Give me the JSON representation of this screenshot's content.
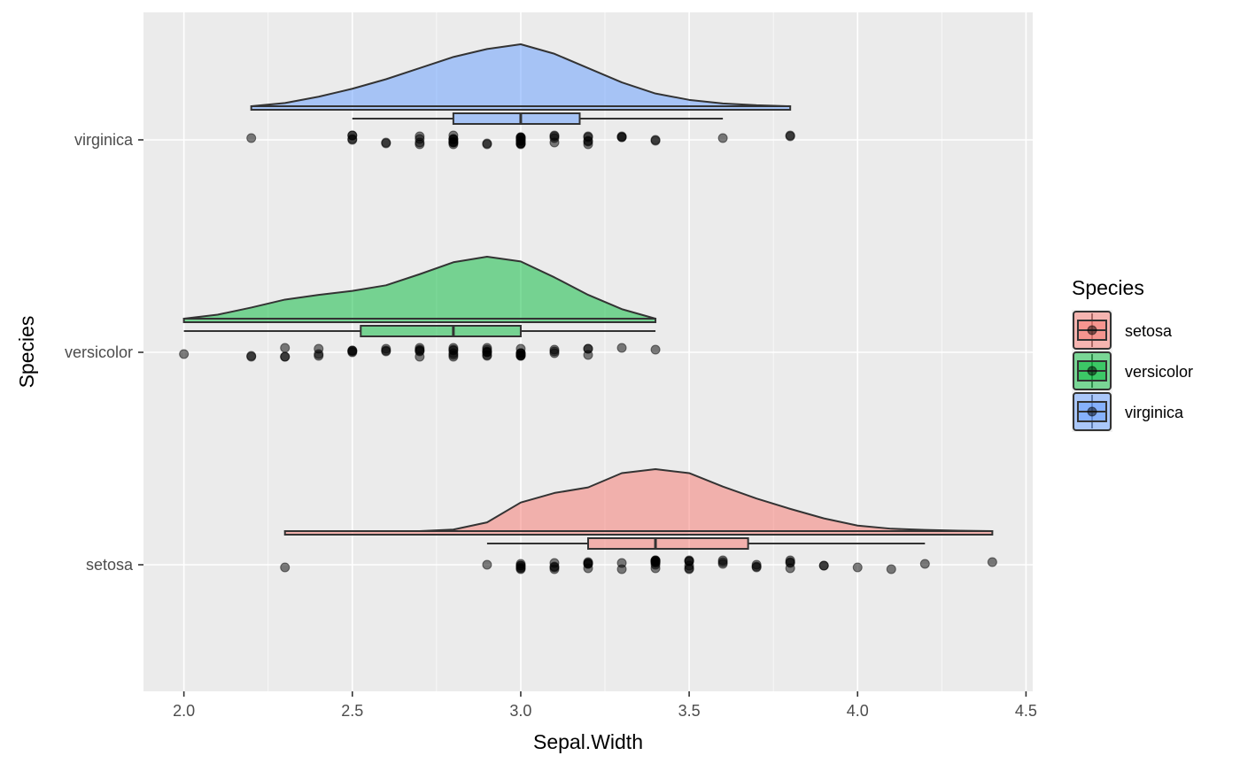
{
  "chart_data": {
    "type": "raincloud",
    "xlabel": "Sepal.Width",
    "ylabel": "Species",
    "xlim": [
      1.88,
      4.52
    ],
    "x_ticks": [
      2.0,
      2.5,
      3.0,
      3.5,
      4.0,
      4.5
    ],
    "x_tick_labels": [
      "2.0",
      "2.5",
      "3.0",
      "3.5",
      "4.0",
      "4.5"
    ],
    "categories": [
      "setosa",
      "versicolor",
      "virginica"
    ],
    "grid": true,
    "legend": {
      "title": "Species",
      "position": "right",
      "items": [
        {
          "label": "setosa",
          "color": "#F8766D"
        },
        {
          "label": "versicolor",
          "color": "#00BA38"
        },
        {
          "label": "virginica",
          "color": "#619CFF"
        }
      ]
    },
    "series": [
      {
        "name": "setosa",
        "color": "#F8766D",
        "range": [
          2.3,
          4.4
        ],
        "box": {
          "whisker_low": 2.9,
          "q1": 3.2,
          "median": 3.4,
          "q3": 3.675,
          "whisker_high": 4.2
        },
        "density": [
          [
            2.3,
            0.0
          ],
          [
            2.5,
            0.0
          ],
          [
            2.7,
            0.0
          ],
          [
            2.8,
            0.02
          ],
          [
            2.9,
            0.11
          ],
          [
            3.0,
            0.36
          ],
          [
            3.1,
            0.48
          ],
          [
            3.2,
            0.55
          ],
          [
            3.3,
            0.73
          ],
          [
            3.4,
            0.78
          ],
          [
            3.5,
            0.73
          ],
          [
            3.6,
            0.56
          ],
          [
            3.7,
            0.41
          ],
          [
            3.8,
            0.28
          ],
          [
            3.9,
            0.16
          ],
          [
            4.0,
            0.07
          ],
          [
            4.1,
            0.03
          ],
          [
            4.2,
            0.015
          ],
          [
            4.3,
            0.005
          ],
          [
            4.4,
            0.0
          ]
        ],
        "points": [
          3.5,
          3.0,
          3.2,
          3.1,
          3.6,
          3.9,
          3.4,
          3.4,
          2.9,
          3.1,
          3.7,
          3.4,
          3.0,
          3.0,
          4.0,
          4.4,
          3.9,
          3.5,
          3.8,
          3.8,
          3.4,
          3.7,
          3.6,
          3.3,
          3.4,
          3.0,
          3.4,
          3.5,
          3.4,
          3.2,
          3.1,
          3.4,
          4.1,
          4.2,
          3.1,
          3.2,
          3.5,
          3.6,
          3.0,
          3.4,
          3.5,
          2.3,
          3.2,
          3.5,
          3.8,
          3.0,
          3.8,
          3.2,
          3.7,
          3.3
        ]
      },
      {
        "name": "versicolor",
        "color": "#00BA38",
        "range": [
          2.0,
          3.4
        ],
        "box": {
          "whisker_low": 2.0,
          "q1": 2.525,
          "median": 2.8,
          "q3": 3.0,
          "whisker_high": 3.4
        },
        "density": [
          [
            2.0,
            0.0
          ],
          [
            2.1,
            0.05
          ],
          [
            2.2,
            0.14
          ],
          [
            2.3,
            0.24
          ],
          [
            2.4,
            0.3
          ],
          [
            2.5,
            0.35
          ],
          [
            2.6,
            0.42
          ],
          [
            2.7,
            0.56
          ],
          [
            2.8,
            0.71
          ],
          [
            2.9,
            0.78
          ],
          [
            3.0,
            0.72
          ],
          [
            3.1,
            0.52
          ],
          [
            3.2,
            0.3
          ],
          [
            3.3,
            0.12
          ],
          [
            3.4,
            0.0
          ]
        ],
        "points": [
          3.2,
          3.2,
          3.1,
          2.3,
          2.8,
          2.8,
          3.3,
          2.4,
          2.9,
          2.7,
          2.0,
          3.0,
          2.2,
          2.9,
          2.9,
          3.1,
          3.0,
          2.7,
          2.2,
          2.5,
          3.2,
          2.8,
          2.5,
          2.8,
          2.9,
          3.0,
          2.8,
          3.0,
          2.9,
          2.6,
          2.4,
          2.4,
          2.7,
          2.7,
          3.0,
          3.4,
          3.1,
          2.3,
          3.0,
          2.5,
          2.6,
          3.0,
          2.6,
          2.3,
          2.7,
          3.0,
          2.9,
          2.9,
          2.5,
          2.8
        ]
      },
      {
        "name": "virginica",
        "color": "#619CFF",
        "range": [
          2.2,
          3.8
        ],
        "box": {
          "whisker_low": 2.5,
          "q1": 2.8,
          "median": 3.0,
          "q3": 3.175,
          "whisker_high": 3.6
        },
        "density": [
          [
            2.2,
            0.0
          ],
          [
            2.3,
            0.04
          ],
          [
            2.4,
            0.12
          ],
          [
            2.5,
            0.22
          ],
          [
            2.6,
            0.34
          ],
          [
            2.7,
            0.48
          ],
          [
            2.8,
            0.62
          ],
          [
            2.9,
            0.72
          ],
          [
            3.0,
            0.78
          ],
          [
            3.1,
            0.66
          ],
          [
            3.2,
            0.48
          ],
          [
            3.3,
            0.3
          ],
          [
            3.4,
            0.16
          ],
          [
            3.5,
            0.08
          ],
          [
            3.6,
            0.035
          ],
          [
            3.7,
            0.012
          ],
          [
            3.8,
            0.0
          ]
        ],
        "points": [
          3.3,
          2.7,
          3.0,
          2.9,
          3.0,
          3.0,
          2.5,
          2.9,
          2.5,
          3.6,
          3.2,
          2.7,
          3.0,
          2.5,
          2.8,
          3.2,
          3.0,
          3.8,
          2.6,
          2.2,
          3.2,
          2.8,
          2.8,
          2.7,
          3.3,
          3.2,
          2.8,
          3.0,
          2.8,
          3.0,
          2.8,
          3.8,
          2.8,
          2.8,
          2.6,
          3.0,
          3.4,
          3.1,
          3.0,
          3.1,
          3.1,
          3.1,
          2.7,
          3.2,
          3.3,
          3.0,
          2.5,
          3.0,
          3.4,
          3.0
        ]
      }
    ]
  }
}
